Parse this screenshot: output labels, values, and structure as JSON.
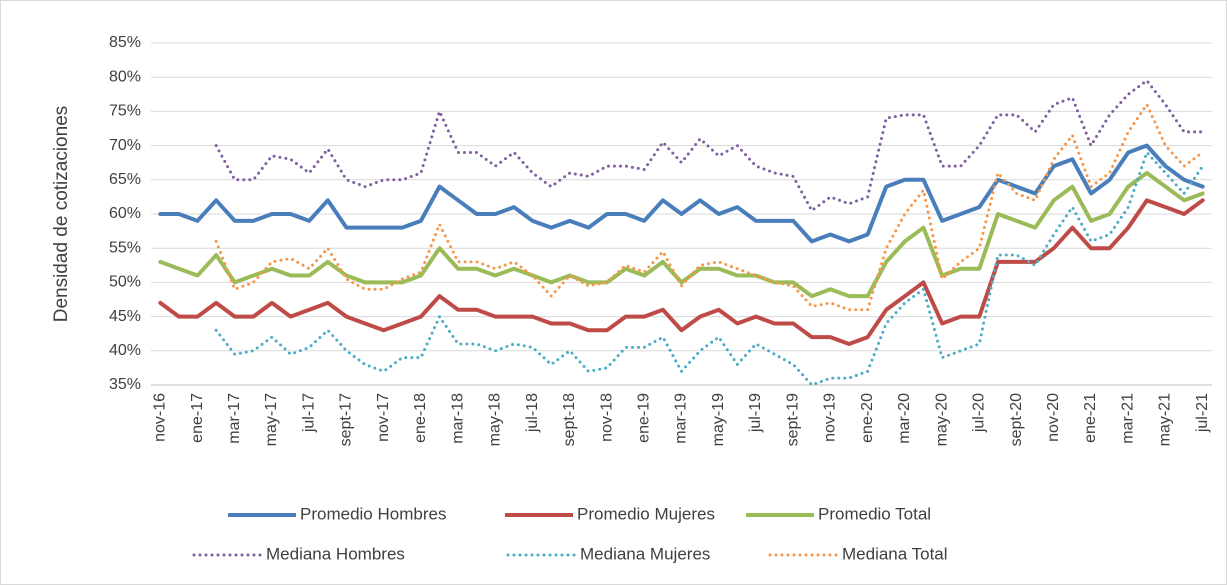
{
  "chart_data": {
    "type": "line",
    "ylabel": "Densidad de cotizaciones",
    "categories": [
      "nov-16",
      null,
      "ene-17",
      null,
      "mar-17",
      null,
      "may-17",
      null,
      "jul-17",
      null,
      "sept-17",
      null,
      "nov-17",
      null,
      "ene-18",
      null,
      "mar-18",
      null,
      "may-18",
      null,
      "jul-18",
      null,
      "sept-18",
      null,
      "nov-18",
      null,
      "ene-19",
      null,
      "mar-19",
      null,
      "may-19",
      null,
      "jul-19",
      null,
      "sept-19",
      null,
      "nov-19",
      null,
      "ene-20",
      null,
      "mar-20",
      null,
      "may-20",
      null,
      "jul-20",
      null,
      "sept-20",
      null,
      "nov-20",
      null,
      "ene-21",
      null,
      "mar-21",
      null,
      "may-21",
      null,
      "jul-21"
    ],
    "ylim": [
      35,
      85
    ],
    "yticks": [
      {
        "value": 35,
        "label": "35%"
      },
      {
        "value": 40,
        "label": "40%"
      },
      {
        "value": 45,
        "label": "45%"
      },
      {
        "value": 50,
        "label": "50%"
      },
      {
        "value": 55,
        "label": "55%"
      },
      {
        "value": 60,
        "label": "60%"
      },
      {
        "value": 65,
        "label": "65%"
      },
      {
        "value": 70,
        "label": "70%"
      },
      {
        "value": 75,
        "label": "75%"
      },
      {
        "value": 80,
        "label": "80%"
      },
      {
        "value": 85,
        "label": "85%"
      }
    ],
    "grid": true,
    "legend": "bottom",
    "series": [
      {
        "name": "Promedio Hombres",
        "color": "#4a7ebb",
        "style": "solid",
        "values": [
          60,
          60,
          59,
          62,
          59,
          59,
          60,
          60,
          59,
          62,
          58,
          58,
          58,
          58,
          59,
          64,
          62,
          60,
          60,
          61,
          59,
          58,
          59,
          58,
          60,
          60,
          59,
          62,
          60,
          62,
          60,
          61,
          59,
          59,
          59,
          56,
          57,
          56,
          57,
          64,
          65,
          65,
          59,
          60,
          61,
          65,
          64,
          63,
          67,
          68,
          63,
          65,
          69,
          70,
          67,
          65,
          64
        ]
      },
      {
        "name": "Promedio Mujeres",
        "color": "#be4b48",
        "style": "solid",
        "values": [
          47,
          45,
          45,
          47,
          45,
          45,
          47,
          45,
          46,
          47,
          45,
          44,
          43,
          44,
          45,
          48,
          46,
          46,
          45,
          45,
          45,
          44,
          44,
          43,
          43,
          45,
          45,
          46,
          43,
          45,
          46,
          44,
          45,
          44,
          44,
          42,
          42,
          41,
          42,
          46,
          48,
          50,
          44,
          45,
          45,
          53,
          53,
          53,
          55,
          58,
          55,
          55,
          58,
          62,
          61,
          60,
          62
        ]
      },
      {
        "name": "Promedio Total",
        "color": "#9bbb59",
        "style": "solid",
        "values": [
          53,
          52,
          51,
          54,
          50,
          51,
          52,
          51,
          51,
          53,
          51,
          50,
          50,
          50,
          51,
          55,
          52,
          52,
          51,
          52,
          51,
          50,
          51,
          50,
          50,
          52,
          51,
          53,
          50,
          52,
          52,
          51,
          51,
          50,
          50,
          48,
          49,
          48,
          48,
          53,
          56,
          58,
          51,
          52,
          52,
          60,
          59,
          58,
          62,
          64,
          59,
          60,
          64,
          66,
          64,
          62,
          63
        ]
      },
      {
        "name": "Mediana Hombres",
        "color": "#7f5fa0",
        "style": "dotted",
        "values": [
          null,
          null,
          null,
          70,
          65,
          65,
          68.5,
          68,
          66,
          69.5,
          65,
          64,
          65,
          65,
          66,
          75,
          69,
          69,
          67,
          69,
          66,
          64,
          66,
          65.5,
          67,
          67,
          66.5,
          70.5,
          67.5,
          71,
          68.5,
          70,
          67,
          66,
          65.5,
          60.5,
          62.5,
          61.5,
          62.5,
          74,
          74.5,
          74.5,
          67,
          67,
          70,
          74.5,
          74.5,
          72,
          76,
          77,
          70,
          74.5,
          77.5,
          79.5,
          76,
          72,
          72
        ]
      },
      {
        "name": "Mediana Mujeres",
        "color": "#4bacc6",
        "style": "dotted",
        "values": [
          null,
          null,
          null,
          43,
          39.5,
          40,
          42,
          39.5,
          40.5,
          43,
          40,
          38,
          37,
          39,
          39,
          45,
          41,
          41,
          40,
          41,
          40.5,
          38,
          40,
          37,
          37.5,
          40.5,
          40.5,
          42,
          37,
          40,
          42,
          38,
          41,
          39.5,
          38,
          35,
          36,
          36,
          37,
          44,
          47,
          49,
          39,
          40,
          41,
          54,
          54,
          52.5,
          57,
          61,
          56,
          57,
          61,
          69,
          66,
          63,
          67
        ]
      },
      {
        "name": "Mediana Total",
        "color": "#f79646",
        "style": "dotted",
        "values": [
          null,
          null,
          null,
          56,
          49,
          50,
          53,
          53.5,
          52,
          55,
          50.5,
          49,
          49,
          50.5,
          51.5,
          58.5,
          53,
          53,
          52,
          53,
          51,
          48,
          51,
          49.5,
          50,
          52.5,
          51.5,
          54.5,
          49.5,
          52.5,
          53,
          52,
          51,
          50,
          49.5,
          46.5,
          47,
          46,
          46,
          55,
          60,
          63.5,
          50.5,
          53,
          55,
          66,
          63,
          62,
          68,
          71.5,
          64,
          66,
          72,
          76,
          70,
          67,
          69
        ]
      }
    ]
  }
}
